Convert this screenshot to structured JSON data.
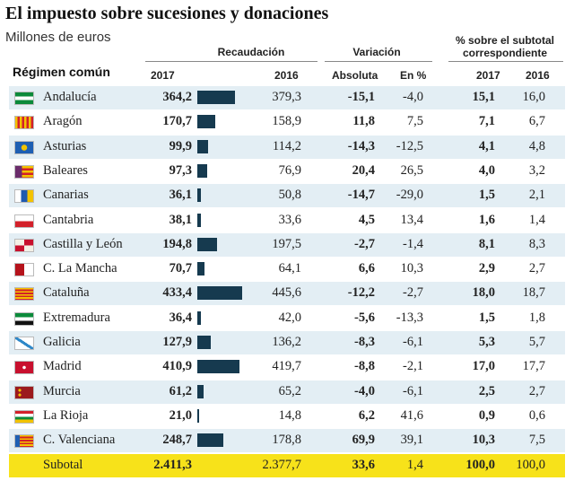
{
  "title": "El impuesto sobre sucesiones y donaciones",
  "subtitle": "Millones de euros",
  "headers": {
    "recaudacion": "Recaudación",
    "variacion": "Variación",
    "pct_subtotal": "% sobre el subtotal",
    "pct_subtotal2": "correspondiente",
    "regimen": "Régimen común",
    "y2017": "2017",
    "y2016": "2016",
    "absoluta": "Absoluta",
    "en_pct": "En %",
    "p2017": "2017",
    "p2016": "2016"
  },
  "colors": {
    "row_alt": "#e3eef4",
    "bar": "#163a4f",
    "total": "#f7e21a"
  },
  "chart_data": {
    "type": "table",
    "title": "El impuesto sobre sucesiones y donaciones",
    "unit": "Millones de euros",
    "bar_series": "Recaudación 2017",
    "bar_max": 433.4,
    "rows": [
      {
        "region": "Andalucía",
        "flag": "andalucia-flag",
        "r2017": "364,2",
        "v": 364.2,
        "r2016": "379,3",
        "abs": "-15,1",
        "pct": "-4,0",
        "s2017": "15,1",
        "s2016": "16,0"
      },
      {
        "region": "Aragón",
        "flag": "aragon-flag",
        "r2017": "170,7",
        "v": 170.7,
        "r2016": "158,9",
        "abs": "11,8",
        "pct": "7,5",
        "s2017": "7,1",
        "s2016": "6,7"
      },
      {
        "region": "Asturias",
        "flag": "asturias-flag",
        "r2017": "99,9",
        "v": 99.9,
        "r2016": "114,2",
        "abs": "-14,3",
        "pct": "-12,5",
        "s2017": "4,1",
        "s2016": "4,8"
      },
      {
        "region": "Baleares",
        "flag": "baleares-flag",
        "r2017": "97,3",
        "v": 97.3,
        "r2016": "76,9",
        "abs": "20,4",
        "pct": "26,5",
        "s2017": "4,0",
        "s2016": "3,2"
      },
      {
        "region": "Canarias",
        "flag": "canarias-flag",
        "r2017": "36,1",
        "v": 36.1,
        "r2016": "50,8",
        "abs": "-14,7",
        "pct": "-29,0",
        "s2017": "1,5",
        "s2016": "2,1"
      },
      {
        "region": "Cantabria",
        "flag": "cantabria-flag",
        "r2017": "38,1",
        "v": 38.1,
        "r2016": "33,6",
        "abs": "4,5",
        "pct": "13,4",
        "s2017": "1,6",
        "s2016": "1,4"
      },
      {
        "region": "Castilla y León",
        "flag": "castilla-leon-flag",
        "r2017": "194,8",
        "v": 194.8,
        "r2016": "197,5",
        "abs": "-2,7",
        "pct": "-1,4",
        "s2017": "8,1",
        "s2016": "8,3"
      },
      {
        "region": "C. La Mancha",
        "flag": "castilla-la-mancha-flag",
        "r2017": "70,7",
        "v": 70.7,
        "r2016": "64,1",
        "abs": "6,6",
        "pct": "10,3",
        "s2017": "2,9",
        "s2016": "2,7"
      },
      {
        "region": "Cataluña",
        "flag": "cataluna-flag",
        "r2017": "433,4",
        "v": 433.4,
        "r2016": "445,6",
        "abs": "-12,2",
        "pct": "-2,7",
        "s2017": "18,0",
        "s2016": "18,7"
      },
      {
        "region": "Extremadura",
        "flag": "extremadura-flag",
        "r2017": "36,4",
        "v": 36.4,
        "r2016": "42,0",
        "abs": "-5,6",
        "pct": "-13,3",
        "s2017": "1,5",
        "s2016": "1,8"
      },
      {
        "region": "Galicia",
        "flag": "galicia-flag",
        "r2017": "127,9",
        "v": 127.9,
        "r2016": "136,2",
        "abs": "-8,3",
        "pct": "-6,1",
        "s2017": "5,3",
        "s2016": "5,7"
      },
      {
        "region": "Madrid",
        "flag": "madrid-flag",
        "r2017": "410,9",
        "v": 410.9,
        "r2016": "419,7",
        "abs": "-8,8",
        "pct": "-2,1",
        "s2017": "17,0",
        "s2016": "17,7"
      },
      {
        "region": "Murcia",
        "flag": "murcia-flag",
        "r2017": "61,2",
        "v": 61.2,
        "r2016": "65,2",
        "abs": "-4,0",
        "pct": "-6,1",
        "s2017": "2,5",
        "s2016": "2,7"
      },
      {
        "region": "La Rioja",
        "flag": "la-rioja-flag",
        "r2017": "21,0",
        "v": 21.0,
        "r2016": "14,8",
        "abs": "6,2",
        "pct": "41,6",
        "s2017": "0,9",
        "s2016": "0,6"
      },
      {
        "region": "C. Valenciana",
        "flag": "valenciana-flag",
        "r2017": "248,7",
        "v": 248.7,
        "r2016": "178,8",
        "abs": "69,9",
        "pct": "39,1",
        "s2017": "10,3",
        "s2016": "7,5"
      }
    ],
    "total": {
      "region": "Subotal",
      "r2017": "2.411,3",
      "r2016": "2.377,7",
      "abs": "33,6",
      "pct": "1,4",
      "s2017": "100,0",
      "s2016": "100,0"
    }
  }
}
